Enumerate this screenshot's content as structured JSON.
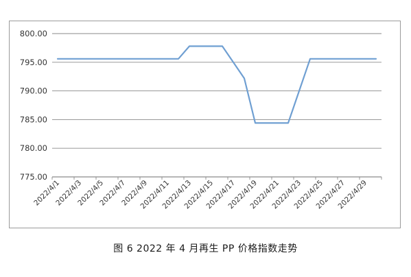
{
  "chart_data": {
    "type": "line",
    "x": [
      "2022/4/1",
      "2022/4/2",
      "2022/4/3",
      "2022/4/4",
      "2022/4/5",
      "2022/4/6",
      "2022/4/7",
      "2022/4/8",
      "2022/4/9",
      "2022/4/10",
      "2022/4/11",
      "2022/4/12",
      "2022/4/13",
      "2022/4/14",
      "2022/4/15",
      "2022/4/16",
      "2022/4/17",
      "2022/4/18",
      "2022/4/19",
      "2022/4/20",
      "2022/4/21",
      "2022/4/22",
      "2022/4/23",
      "2022/4/24",
      "2022/4/25",
      "2022/4/26",
      "2022/4/27",
      "2022/4/28",
      "2022/4/29",
      "2022/4/30"
    ],
    "x_tick_labels": [
      "2022/4/1",
      "2022/4/3",
      "2022/4/5",
      "2022/4/7",
      "2022/4/9",
      "2022/4/11",
      "2022/4/13",
      "2022/4/15",
      "2022/4/17",
      "2022/4/19",
      "2022/4/21",
      "2022/4/23",
      "2022/4/25",
      "2022/4/27",
      "2022/4/29"
    ],
    "series": [
      {
        "values": [
          795.6,
          795.6,
          795.6,
          795.6,
          795.6,
          795.6,
          795.6,
          795.6,
          795.6,
          795.6,
          795.6,
          795.6,
          797.8,
          797.8,
          797.8,
          797.8,
          795.0,
          792.2,
          784.4,
          784.4,
          784.4,
          784.4,
          790.0,
          795.6,
          795.6,
          795.6,
          795.6,
          795.6,
          795.6,
          795.6
        ]
      }
    ],
    "y_tick_labels": [
      "775.00",
      "780.00",
      "785.00",
      "790.00",
      "795.00",
      "800.00"
    ],
    "ylim": [
      775,
      800
    ],
    "grid": "horizontal",
    "line_color": "#6f9fd2",
    "grid_color": "#8a8a8a"
  },
  "caption": "图 6  2022 年 4 月再生 PP 价格指数走势"
}
